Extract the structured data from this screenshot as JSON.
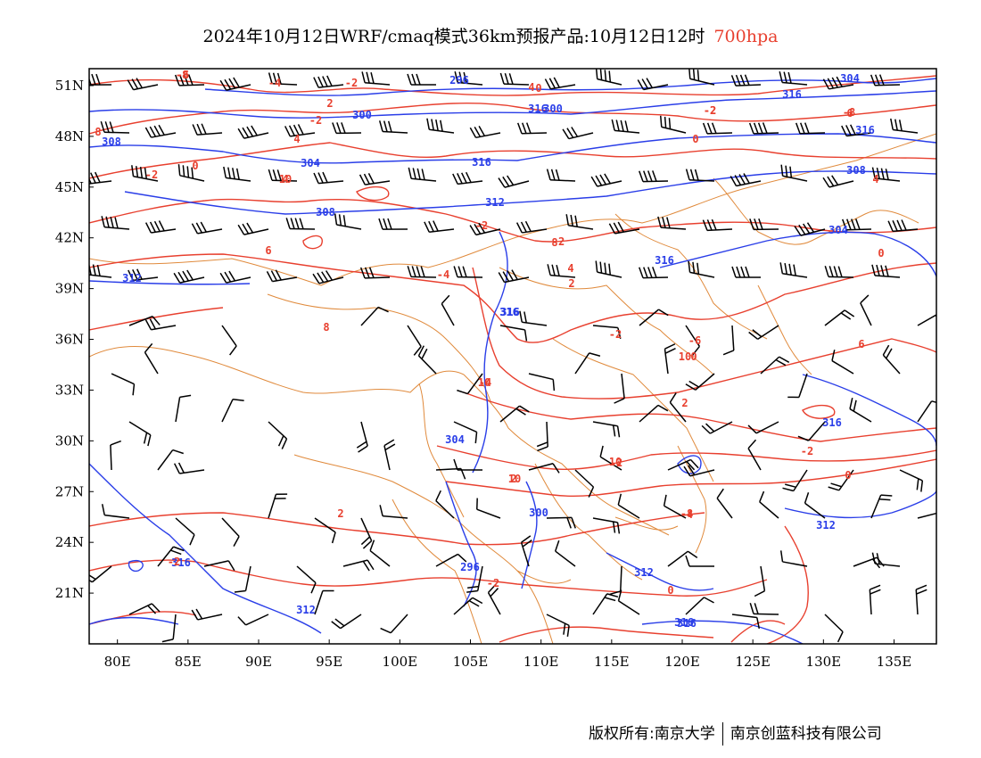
{
  "title": {
    "main": "2024年10月12日WRF/cmaq模式36km预报产品:10月12日12时",
    "level": "700hpa"
  },
  "map": {
    "lon_range": [
      78,
      138
    ],
    "lat_range": [
      18,
      52
    ],
    "x_ticks": [
      "80E",
      "85E",
      "90E",
      "95E",
      "100E",
      "105E",
      "110E",
      "115E",
      "120E",
      "125E",
      "130E",
      "135E"
    ],
    "y_ticks": [
      "51N",
      "48N",
      "45N",
      "42N",
      "39N",
      "36N",
      "33N",
      "30N",
      "27N",
      "24N",
      "21N"
    ],
    "colors": {
      "height_contour": "#2a3ee8",
      "temperature_contour": "#e8402f",
      "boundary": "#e08a3c",
      "wind_barb": "#000000"
    },
    "height_labels": [
      "296",
      "300",
      "304",
      "308",
      "312",
      "316",
      "304",
      "300",
      "296",
      "312",
      "308",
      "316",
      "304",
      "300",
      "312",
      "316",
      "304",
      "308",
      "312",
      "316",
      "312",
      "316",
      "316",
      "316",
      "316",
      "316",
      "316",
      "316"
    ],
    "temperature_labels": [
      "-8",
      "-2",
      "-4",
      "2",
      "-2",
      "0",
      "-2",
      "0",
      "-2",
      "-8",
      "4",
      "4",
      "0",
      "-2",
      "-2",
      "-4",
      "4",
      "6",
      "-2",
      "-6",
      "-4",
      "0",
      "0",
      "6",
      "2",
      "-2",
      "-2",
      "0",
      "2",
      "-4",
      "2",
      "-2",
      "0",
      "-2",
      "2",
      "4",
      "4",
      "6",
      "8",
      "8",
      "8",
      "10",
      "10",
      "10",
      "10",
      "10",
      "-8",
      "-6",
      "-2"
    ]
  },
  "footer": {
    "left": "版权所有:南京大学",
    "right": "南京创蓝科技有限公司"
  }
}
